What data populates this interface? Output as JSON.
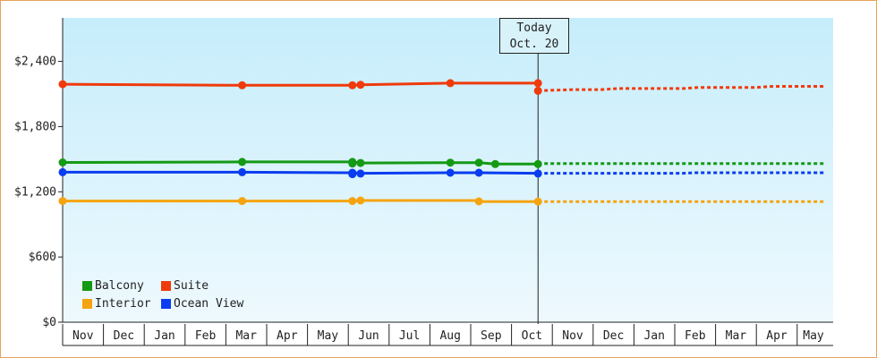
{
  "colors": {
    "balcony": "#149a14",
    "suite": "#f03a0c",
    "interior": "#f5a40f",
    "ocean_view": "#0a3cf0",
    "plot_top": "#c6edfb",
    "plot_bottom": "#eef9fe",
    "frame": "#e8a25a"
  },
  "today": {
    "line1": "Today",
    "line2": "Oct. 20"
  },
  "chart_data": {
    "type": "line",
    "title": "",
    "xlabel": "",
    "ylabel": "",
    "ylim": [
      0,
      2800
    ],
    "yticks": [
      0,
      600,
      1200,
      1800,
      2400
    ],
    "ytick_labels": [
      "$0",
      "$600",
      "$1,200",
      "$1,800",
      "$2,400"
    ],
    "x_unit": "month index (0 = Nov, past through Oct = 11, forecast to May = 18.7)",
    "month_labels": [
      "Nov",
      "Dec",
      "Jan",
      "Feb",
      "Mar",
      "Apr",
      "May",
      "Jun",
      "Jul",
      "Aug",
      "Sep",
      "Oct",
      "Nov",
      "Dec",
      "Jan",
      "Feb",
      "Mar",
      "Apr",
      "May"
    ],
    "today_x": 11.65,
    "grid": false,
    "legend": "bottom-left",
    "series": [
      {
        "name": "Balcony",
        "color_key": "balcony",
        "points": [
          [
            0,
            1470
          ],
          [
            4.4,
            1475
          ],
          [
            7.1,
            1475
          ],
          [
            7.3,
            1465
          ],
          [
            9.5,
            1468
          ],
          [
            10.2,
            1468
          ],
          [
            10.6,
            1455
          ],
          [
            11.65,
            1455
          ]
        ],
        "markers": [
          [
            0,
            1470
          ],
          [
            4.4,
            1475
          ],
          [
            7.1,
            1475
          ],
          [
            7.1,
            1460
          ],
          [
            7.3,
            1465
          ],
          [
            9.5,
            1468
          ],
          [
            10.2,
            1468
          ],
          [
            10.6,
            1455
          ],
          [
            11.65,
            1455
          ]
        ],
        "forecast": [
          [
            11.65,
            1460
          ],
          [
            18.7,
            1460
          ]
        ]
      },
      {
        "name": "Suite",
        "color_key": "suite",
        "points": [
          [
            0,
            2190
          ],
          [
            4.4,
            2180
          ],
          [
            7.1,
            2180
          ],
          [
            7.3,
            2185
          ],
          [
            9.5,
            2200
          ],
          [
            11.65,
            2200
          ],
          [
            11.65,
            2130
          ]
        ],
        "markers": [
          [
            0,
            2190
          ],
          [
            4.4,
            2180
          ],
          [
            7.1,
            2180
          ],
          [
            7.3,
            2185
          ],
          [
            9.5,
            2200
          ],
          [
            11.65,
            2200
          ],
          [
            11.65,
            2130
          ]
        ],
        "forecast": [
          [
            11.65,
            2130
          ],
          [
            12.5,
            2140
          ],
          [
            13.2,
            2140
          ],
          [
            13.6,
            2150
          ],
          [
            15.2,
            2150
          ],
          [
            15.6,
            2160
          ],
          [
            17.0,
            2160
          ],
          [
            17.4,
            2170
          ],
          [
            18.7,
            2170
          ]
        ]
      },
      {
        "name": "Interior",
        "color_key": "interior",
        "points": [
          [
            0,
            1115
          ],
          [
            4.4,
            1115
          ],
          [
            7.1,
            1115
          ],
          [
            7.3,
            1120
          ],
          [
            10.2,
            1120
          ],
          [
            10.2,
            1110
          ],
          [
            11.65,
            1110
          ]
        ],
        "markers": [
          [
            0,
            1115
          ],
          [
            4.4,
            1115
          ],
          [
            7.1,
            1115
          ],
          [
            7.3,
            1120
          ],
          [
            10.2,
            1112
          ],
          [
            11.65,
            1110
          ]
        ],
        "forecast": [
          [
            11.65,
            1110
          ],
          [
            18.7,
            1110
          ]
        ]
      },
      {
        "name": "Ocean View",
        "color_key": "ocean_view",
        "points": [
          [
            0,
            1380
          ],
          [
            4.4,
            1380
          ],
          [
            7.1,
            1375
          ],
          [
            7.3,
            1370
          ],
          [
            9.5,
            1375
          ],
          [
            10.2,
            1375
          ],
          [
            11.65,
            1370
          ]
        ],
        "markers": [
          [
            0,
            1380
          ],
          [
            4.4,
            1380
          ],
          [
            7.1,
            1375
          ],
          [
            7.1,
            1362
          ],
          [
            7.3,
            1368
          ],
          [
            9.5,
            1375
          ],
          [
            10.2,
            1375
          ],
          [
            11.65,
            1368
          ]
        ],
        "forecast": [
          [
            11.65,
            1370
          ],
          [
            15.2,
            1370
          ],
          [
            15.5,
            1375
          ],
          [
            18.7,
            1375
          ]
        ]
      }
    ]
  },
  "legend": {
    "items": [
      {
        "label": "Balcony",
        "color_key": "balcony"
      },
      {
        "label": "Suite",
        "color_key": "suite"
      },
      {
        "label": "Interior",
        "color_key": "interior"
      },
      {
        "label": "Ocean View",
        "color_key": "ocean_view"
      }
    ]
  }
}
